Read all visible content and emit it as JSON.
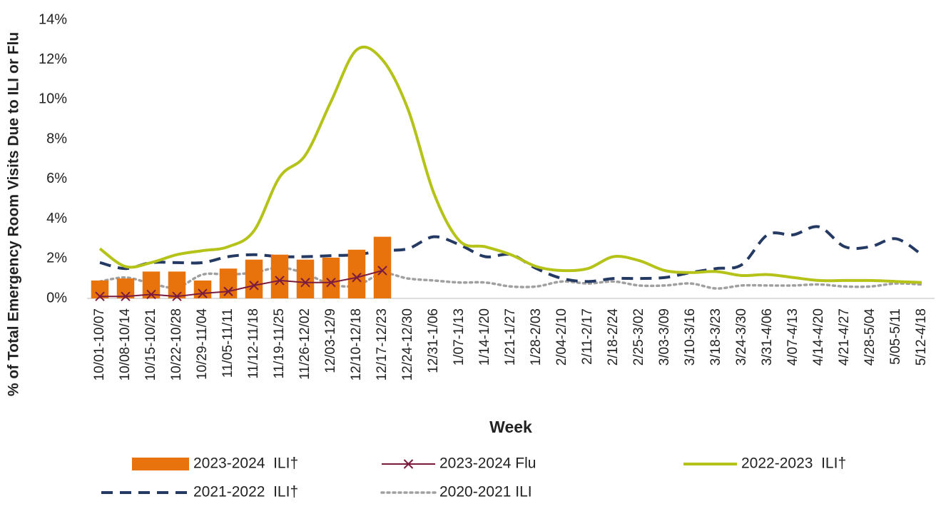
{
  "chart_data": {
    "type": "combo",
    "y_label": "% of Total Emergency Room Visits Due to ILI or Flu",
    "x_label": "Week",
    "categories": [
      "10/01-10/07",
      "10/08-10/14",
      "10/15-10/21",
      "10/22-10/28",
      "10/29-11/04",
      "11/05-11/11",
      "11/12-11/18",
      "11/19-11/25",
      "11/26-12/02",
      "12/03-12/9",
      "12/10-12/18",
      "12/17-12/23",
      "12/24-12/30",
      "12/31-1/06",
      "1/07-1/13",
      "1/14-1/20",
      "1/21-1/27",
      "1/28-2/03",
      "2/04-2/10",
      "2/11-2/17",
      "2/18-2/24",
      "2/25-3/02",
      "3/03-3/09",
      "3/10-3/16",
      "3/18-3/23",
      "3/24-3/30",
      "3/31-4/06",
      "4/07-4/13",
      "4/14-4/20",
      "4/21-4/27",
      "4/28-5/04",
      "5/05-5/11",
      "5/12-4/18"
    ],
    "ylim": [
      0,
      14
    ],
    "yticks": [
      {
        "value": 0,
        "label": "0%"
      },
      {
        "value": 2,
        "label": "2%"
      },
      {
        "value": 4,
        "label": "4%"
      },
      {
        "value": 6,
        "label": "6%"
      },
      {
        "value": 8,
        "label": "8%"
      },
      {
        "value": 10,
        "label": "10%"
      },
      {
        "value": 12,
        "label": "12%"
      },
      {
        "value": 14,
        "label": "14%"
      }
    ],
    "series": [
      {
        "name": "2023-2024  ILI†",
        "style": "bar",
        "color": "#e8730c",
        "values": [
          0.9,
          1.0,
          1.35,
          1.35,
          0.9,
          1.5,
          1.95,
          2.2,
          1.95,
          2.05,
          2.45,
          3.1,
          null,
          null,
          null,
          null,
          null,
          null,
          null,
          null,
          null,
          null,
          null,
          null,
          null,
          null,
          null,
          null,
          null,
          null,
          null,
          null,
          null
        ]
      },
      {
        "name": "2023-2024 Flu",
        "style": "marker-line",
        "color": "#7b1c3e",
        "values": [
          0.1,
          0.1,
          0.2,
          0.1,
          0.25,
          0.35,
          0.65,
          0.9,
          0.8,
          0.8,
          1.05,
          1.4,
          null,
          null,
          null,
          null,
          null,
          null,
          null,
          null,
          null,
          null,
          null,
          null,
          null,
          null,
          null,
          null,
          null,
          null,
          null,
          null,
          null
        ]
      },
      {
        "name": "2022-2023  ILI†",
        "style": "solid",
        "color": "#b5c318",
        "values": [
          2.5,
          1.6,
          1.8,
          2.2,
          2.4,
          2.6,
          3.4,
          6.1,
          7.2,
          9.9,
          12.5,
          12.0,
          9.5,
          5.3,
          2.9,
          2.6,
          2.2,
          1.6,
          1.4,
          1.5,
          2.1,
          1.9,
          1.4,
          1.3,
          1.35,
          1.15,
          1.2,
          1.05,
          0.9,
          0.9,
          0.9,
          0.85,
          0.8
        ]
      },
      {
        "name": "2021-2022  ILI†",
        "style": "dashed",
        "color": "#253a63",
        "values": [
          1.8,
          1.5,
          1.8,
          1.8,
          1.8,
          2.1,
          2.2,
          2.1,
          2.1,
          2.15,
          2.2,
          2.4,
          2.5,
          3.1,
          2.7,
          2.1,
          2.2,
          1.5,
          1.0,
          0.85,
          1.0,
          1.0,
          1.05,
          1.3,
          1.5,
          1.7,
          3.2,
          3.2,
          3.6,
          2.6,
          2.6,
          3.0,
          2.2
        ]
      },
      {
        "name": "2020-2021 ILI",
        "style": "dotted",
        "color": "#a0a0a0",
        "values": [
          0.85,
          1.05,
          0.75,
          0.55,
          1.2,
          1.2,
          1.3,
          1.55,
          1.25,
          0.7,
          0.65,
          1.25,
          1.0,
          0.9,
          0.8,
          0.8,
          0.6,
          0.6,
          0.85,
          0.75,
          0.85,
          0.65,
          0.65,
          0.75,
          0.5,
          0.65,
          0.65,
          0.65,
          0.7,
          0.6,
          0.6,
          0.75,
          0.7
        ]
      }
    ]
  }
}
